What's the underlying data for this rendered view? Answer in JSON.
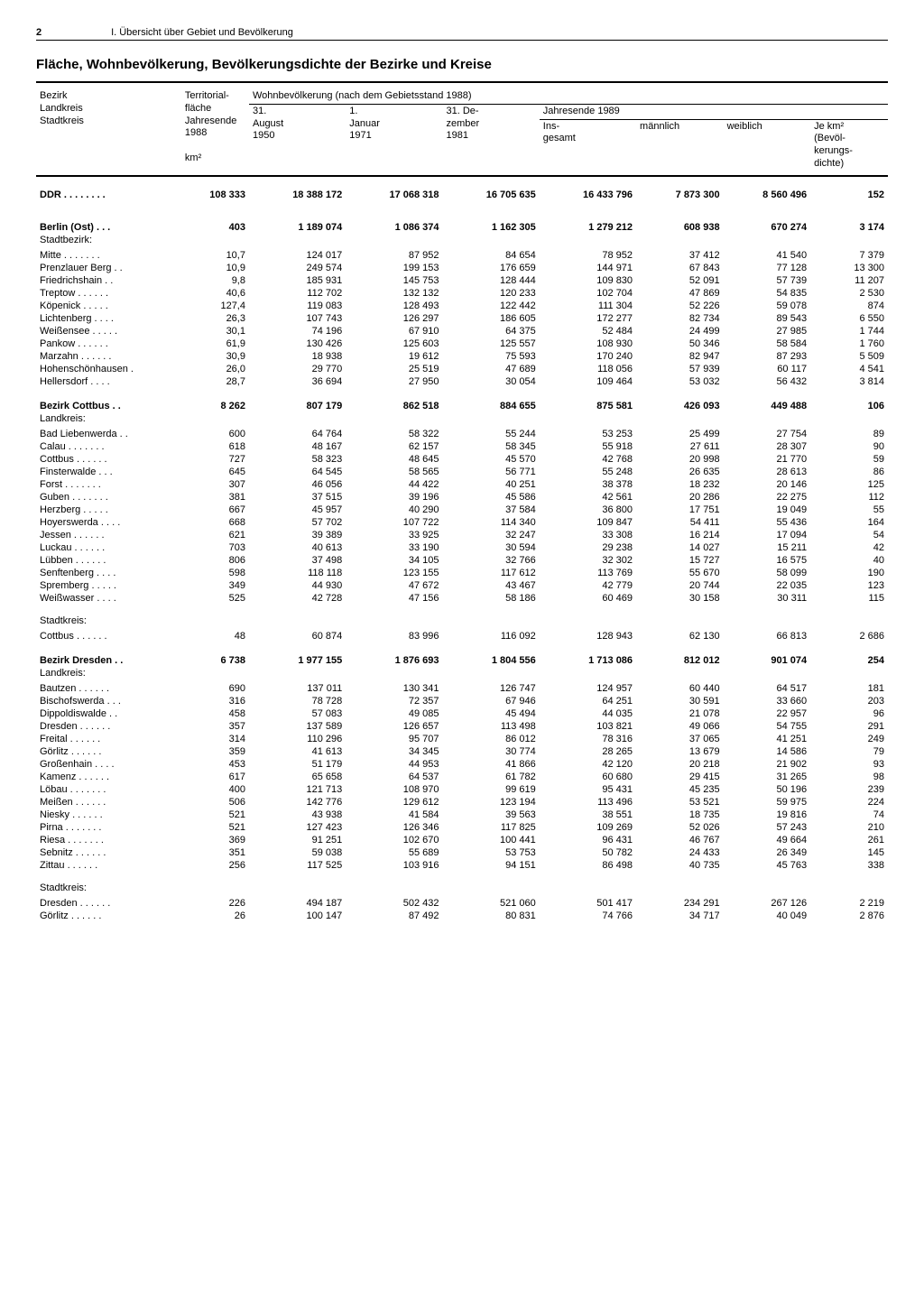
{
  "page": {
    "number": "2",
    "chapter": "I. Übersicht über Gebiet und Bevölkerung",
    "title": "Fläche, Wohnbevölkerung, Bevölkerungsdichte der Bezirke und Kreise"
  },
  "header": {
    "col_region": "Bezirk\nLandkreis\nStadtkreis",
    "col_area": "Territorial-\nfläche\nJahresende\n1988",
    "col_area_unit": "km²",
    "col_pop_group": "Wohnbevölkerung (nach dem Gebietsstand 1988)",
    "col_1950": "31.\nAugust\n1950",
    "col_1971": "1.\nJanuar\n1971",
    "col_1981": "31. De-\nzember\n1981",
    "col_1989_group": "Jahresende 1989",
    "col_total": "Ins-\ngesamt",
    "col_male": "männlich",
    "col_female": "weiblich",
    "col_density": "Je km²\n(Bevöl-\nkerungs-\ndichte)"
  },
  "rows": [
    {
      "type": "top",
      "name": "DDR",
      "area": "108 333",
      "c1": "18 388 172",
      "c2": "17 068 318",
      "c3": "16 705 635",
      "c4": "16 433 796",
      "c5": "7 873 300",
      "c6": "8 560 496",
      "c7": "152"
    },
    {
      "type": "section",
      "name": "Berlin (Ost)",
      "area": "403",
      "c1": "1 189 074",
      "c2": "1 086 374",
      "c3": "1 162 305",
      "c4": "1 279 212",
      "c5": "608 938",
      "c6": "670 274",
      "c7": "3 174"
    },
    {
      "type": "sublabel",
      "name": "Stadtbezirk:"
    },
    {
      "type": "row",
      "name": "Mitte",
      "area": "10,7",
      "c1": "124 017",
      "c2": "87 952",
      "c3": "84 654",
      "c4": "78 952",
      "c5": "37 412",
      "c6": "41 540",
      "c7": "7 379"
    },
    {
      "type": "row",
      "name": "Prenzlauer Berg",
      "area": "10,9",
      "c1": "249 574",
      "c2": "199 153",
      "c3": "176 659",
      "c4": "144 971",
      "c5": "67 843",
      "c6": "77 128",
      "c7": "13 300"
    },
    {
      "type": "row",
      "name": "Friedrichshain",
      "area": "9,8",
      "c1": "185 931",
      "c2": "145 753",
      "c3": "128 444",
      "c4": "109 830",
      "c5": "52 091",
      "c6": "57 739",
      "c7": "11 207"
    },
    {
      "type": "row",
      "name": "Treptow",
      "area": "40,6",
      "c1": "112 702",
      "c2": "132 132",
      "c3": "120 233",
      "c4": "102 704",
      "c5": "47 869",
      "c6": "54 835",
      "c7": "2 530"
    },
    {
      "type": "row",
      "name": "Köpenick",
      "area": "127,4",
      "c1": "119 083",
      "c2": "128 493",
      "c3": "122 442",
      "c4": "111 304",
      "c5": "52 226",
      "c6": "59 078",
      "c7": "874"
    },
    {
      "type": "row",
      "name": "Lichtenberg",
      "area": "26,3",
      "c1": "107 743",
      "c2": "126 297",
      "c3": "186 605",
      "c4": "172 277",
      "c5": "82 734",
      "c6": "89 543",
      "c7": "6 550"
    },
    {
      "type": "row",
      "name": "Weißensee",
      "area": "30,1",
      "c1": "74 196",
      "c2": "67 910",
      "c3": "64 375",
      "c4": "52 484",
      "c5": "24 499",
      "c6": "27 985",
      "c7": "1 744"
    },
    {
      "type": "row",
      "name": "Pankow",
      "area": "61,9",
      "c1": "130 426",
      "c2": "125 603",
      "c3": "125 557",
      "c4": "108 930",
      "c5": "50 346",
      "c6": "58 584",
      "c7": "1 760"
    },
    {
      "type": "row",
      "name": "Marzahn",
      "area": "30,9",
      "c1": "18 938",
      "c2": "19 612",
      "c3": "75 593",
      "c4": "170 240",
      "c5": "82 947",
      "c6": "87 293",
      "c7": "5 509"
    },
    {
      "type": "row",
      "name": "Hohenschönhausen",
      "area": "26,0",
      "c1": "29 770",
      "c2": "25 519",
      "c3": "47 689",
      "c4": "118 056",
      "c5": "57 939",
      "c6": "60 117",
      "c7": "4 541"
    },
    {
      "type": "row",
      "name": "Hellersdorf",
      "area": "28,7",
      "c1": "36 694",
      "c2": "27 950",
      "c3": "30 054",
      "c4": "109 464",
      "c5": "53 032",
      "c6": "56 432",
      "c7": "3 814"
    },
    {
      "type": "section",
      "name": "Bezirk Cottbus",
      "area": "8 262",
      "c1": "807 179",
      "c2": "862 518",
      "c3": "884 655",
      "c4": "875 581",
      "c5": "426 093",
      "c6": "449 488",
      "c7": "106"
    },
    {
      "type": "sublabel",
      "name": "Landkreis:"
    },
    {
      "type": "row",
      "name": "Bad Liebenwerda",
      "area": "600",
      "c1": "64 764",
      "c2": "58 322",
      "c3": "55 244",
      "c4": "53 253",
      "c5": "25 499",
      "c6": "27 754",
      "c7": "89"
    },
    {
      "type": "row",
      "name": "Calau",
      "area": "618",
      "c1": "48 167",
      "c2": "62 157",
      "c3": "58 345",
      "c4": "55 918",
      "c5": "27 611",
      "c6": "28 307",
      "c7": "90"
    },
    {
      "type": "row",
      "name": "Cottbus",
      "area": "727",
      "c1": "58 323",
      "c2": "48 645",
      "c3": "45 570",
      "c4": "42 768",
      "c5": "20 998",
      "c6": "21 770",
      "c7": "59"
    },
    {
      "type": "row",
      "name": "Finsterwalde",
      "area": "645",
      "c1": "64 545",
      "c2": "58 565",
      "c3": "56 771",
      "c4": "55 248",
      "c5": "26 635",
      "c6": "28 613",
      "c7": "86"
    },
    {
      "type": "row",
      "name": "Forst",
      "area": "307",
      "c1": "46 056",
      "c2": "44 422",
      "c3": "40 251",
      "c4": "38 378",
      "c5": "18 232",
      "c6": "20 146",
      "c7": "125"
    },
    {
      "type": "row",
      "name": "Guben",
      "area": "381",
      "c1": "37 515",
      "c2": "39 196",
      "c3": "45 586",
      "c4": "42 561",
      "c5": "20 286",
      "c6": "22 275",
      "c7": "112"
    },
    {
      "type": "row",
      "name": "Herzberg",
      "area": "667",
      "c1": "45 957",
      "c2": "40 290",
      "c3": "37 584",
      "c4": "36 800",
      "c5": "17 751",
      "c6": "19 049",
      "c7": "55"
    },
    {
      "type": "row",
      "name": "Hoyerswerda",
      "area": "668",
      "c1": "57 702",
      "c2": "107 722",
      "c3": "114 340",
      "c4": "109 847",
      "c5": "54 411",
      "c6": "55 436",
      "c7": "164"
    },
    {
      "type": "row",
      "name": "Jessen",
      "area": "621",
      "c1": "39 389",
      "c2": "33 925",
      "c3": "32 247",
      "c4": "33 308",
      "c5": "16 214",
      "c6": "17 094",
      "c7": "54"
    },
    {
      "type": "row",
      "name": "Luckau",
      "area": "703",
      "c1": "40 613",
      "c2": "33 190",
      "c3": "30 594",
      "c4": "29 238",
      "c5": "14 027",
      "c6": "15 211",
      "c7": "42"
    },
    {
      "type": "row",
      "name": "Lübben",
      "area": "806",
      "c1": "37 498",
      "c2": "34 105",
      "c3": "32 766",
      "c4": "32 302",
      "c5": "15 727",
      "c6": "16 575",
      "c7": "40"
    },
    {
      "type": "row",
      "name": "Senftenberg",
      "area": "598",
      "c1": "118 118",
      "c2": "123 155",
      "c3": "117 612",
      "c4": "113 769",
      "c5": "55 670",
      "c6": "58 099",
      "c7": "190"
    },
    {
      "type": "row",
      "name": "Spremberg",
      "area": "349",
      "c1": "44 930",
      "c2": "47 672",
      "c3": "43 467",
      "c4": "42 779",
      "c5": "20 744",
      "c6": "22 035",
      "c7": "123"
    },
    {
      "type": "row",
      "name": "Weißwasser",
      "area": "525",
      "c1": "42 728",
      "c2": "47 156",
      "c3": "58 186",
      "c4": "60 469",
      "c5": "30 158",
      "c6": "30 311",
      "c7": "115"
    },
    {
      "type": "sublabel2",
      "name": "Stadtkreis:"
    },
    {
      "type": "row",
      "name": "Cottbus",
      "area": "48",
      "c1": "60 874",
      "c2": "83 996",
      "c3": "116 092",
      "c4": "128 943",
      "c5": "62 130",
      "c6": "66 813",
      "c7": "2 686"
    },
    {
      "type": "section",
      "name": "Bezirk Dresden",
      "area": "6 738",
      "c1": "1 977 155",
      "c2": "1 876 693",
      "c3": "1 804 556",
      "c4": "1 713 086",
      "c5": "812 012",
      "c6": "901 074",
      "c7": "254"
    },
    {
      "type": "sublabel",
      "name": "Landkreis:"
    },
    {
      "type": "row",
      "name": "Bautzen",
      "area": "690",
      "c1": "137 011",
      "c2": "130 341",
      "c3": "126 747",
      "c4": "124 957",
      "c5": "60 440",
      "c6": "64 517",
      "c7": "181"
    },
    {
      "type": "row",
      "name": "Bischofswerda",
      "area": "316",
      "c1": "78 728",
      "c2": "72 357",
      "c3": "67 946",
      "c4": "64 251",
      "c5": "30 591",
      "c6": "33 660",
      "c7": "203"
    },
    {
      "type": "row",
      "name": "Dippoldiswalde",
      "area": "458",
      "c1": "57 083",
      "c2": "49 085",
      "c3": "45 494",
      "c4": "44 035",
      "c5": "21 078",
      "c6": "22 957",
      "c7": "96"
    },
    {
      "type": "row",
      "name": "Dresden",
      "area": "357",
      "c1": "137 589",
      "c2": "126 657",
      "c3": "113 498",
      "c4": "103 821",
      "c5": "49 066",
      "c6": "54 755",
      "c7": "291"
    },
    {
      "type": "row",
      "name": "Freital",
      "area": "314",
      "c1": "110 296",
      "c2": "95 707",
      "c3": "86 012",
      "c4": "78 316",
      "c5": "37 065",
      "c6": "41 251",
      "c7": "249"
    },
    {
      "type": "row",
      "name": "Görlitz",
      "area": "359",
      "c1": "41 613",
      "c2": "34 345",
      "c3": "30 774",
      "c4": "28 265",
      "c5": "13 679",
      "c6": "14 586",
      "c7": "79"
    },
    {
      "type": "row",
      "name": "Großenhain",
      "area": "453",
      "c1": "51 179",
      "c2": "44 953",
      "c3": "41 866",
      "c4": "42 120",
      "c5": "20 218",
      "c6": "21 902",
      "c7": "93"
    },
    {
      "type": "row",
      "name": "Kamenz",
      "area": "617",
      "c1": "65 658",
      "c2": "64 537",
      "c3": "61 782",
      "c4": "60 680",
      "c5": "29 415",
      "c6": "31 265",
      "c7": "98"
    },
    {
      "type": "row",
      "name": "Löbau",
      "area": "400",
      "c1": "121 713",
      "c2": "108 970",
      "c3": "99 619",
      "c4": "95 431",
      "c5": "45 235",
      "c6": "50 196",
      "c7": "239"
    },
    {
      "type": "row",
      "name": "Meißen",
      "area": "506",
      "c1": "142 776",
      "c2": "129 612",
      "c3": "123 194",
      "c4": "113 496",
      "c5": "53 521",
      "c6": "59 975",
      "c7": "224"
    },
    {
      "type": "row",
      "name": "Niesky",
      "area": "521",
      "c1": "43 938",
      "c2": "41 584",
      "c3": "39 563",
      "c4": "38 551",
      "c5": "18 735",
      "c6": "19 816",
      "c7": "74"
    },
    {
      "type": "row",
      "name": "Pirna",
      "area": "521",
      "c1": "127 423",
      "c2": "126 346",
      "c3": "117 825",
      "c4": "109 269",
      "c5": "52 026",
      "c6": "57 243",
      "c7": "210"
    },
    {
      "type": "row",
      "name": "Riesa",
      "area": "369",
      "c1": "91 251",
      "c2": "102 670",
      "c3": "100 441",
      "c4": "96 431",
      "c5": "46 767",
      "c6": "49 664",
      "c7": "261"
    },
    {
      "type": "row",
      "name": "Sebnitz",
      "area": "351",
      "c1": "59 038",
      "c2": "55 689",
      "c3": "53 753",
      "c4": "50 782",
      "c5": "24 433",
      "c6": "26 349",
      "c7": "145"
    },
    {
      "type": "row",
      "name": "Zittau",
      "area": "256",
      "c1": "117 525",
      "c2": "103 916",
      "c3": "94 151",
      "c4": "86 498",
      "c5": "40 735",
      "c6": "45 763",
      "c7": "338"
    },
    {
      "type": "sublabel2",
      "name": "Stadtkreis:"
    },
    {
      "type": "row",
      "name": "Dresden",
      "area": "226",
      "c1": "494 187",
      "c2": "502 432",
      "c3": "521 060",
      "c4": "501 417",
      "c5": "234 291",
      "c6": "267 126",
      "c7": "2 219"
    },
    {
      "type": "row",
      "name": "Görlitz",
      "area": "26",
      "c1": "100 147",
      "c2": "87 492",
      "c3": "80 831",
      "c4": "74 766",
      "c5": "34 717",
      "c6": "40 049",
      "c7": "2 876"
    }
  ],
  "colwidths": [
    "150px",
    "70px",
    "100px",
    "100px",
    "100px",
    "100px",
    "90px",
    "90px",
    "80px"
  ]
}
